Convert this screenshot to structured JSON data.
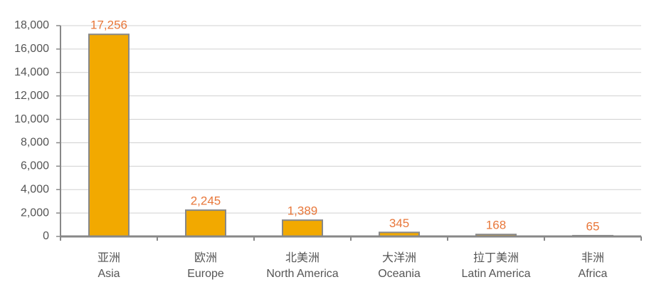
{
  "chart_data": {
    "type": "bar",
    "categories": [
      [
        "亚洲",
        "Asia"
      ],
      [
        "欧洲",
        "Europe"
      ],
      [
        "北美洲",
        "North America"
      ],
      [
        "大洋洲",
        "Oceania"
      ],
      [
        "拉丁美洲",
        "Latin America"
      ],
      [
        "非洲",
        "Africa"
      ]
    ],
    "values": [
      17256,
      2245,
      1389,
      345,
      168,
      65
    ],
    "value_labels": [
      "17,256",
      "2,245",
      "1,389",
      "345",
      "168",
      "65"
    ],
    "color": "#f2a900",
    "ylim": [
      0,
      18000
    ],
    "yticks": [
      0,
      {
        "value": 2000,
        "label": "2,000"
      },
      {
        "value": 4000,
        "label": "4,000"
      },
      {
        "value": 6000,
        "label": "6,000"
      },
      {
        "value": 8000,
        "label": "8,000"
      },
      {
        "value": 10000,
        "label": "10,000"
      },
      {
        "value": 12000,
        "label": "12,000"
      },
      {
        "value": 14000,
        "label": "14,000"
      },
      {
        "value": 16000,
        "label": "16,000"
      },
      {
        "value": 18000,
        "label": "18,000"
      }
    ],
    "grid": true
  }
}
